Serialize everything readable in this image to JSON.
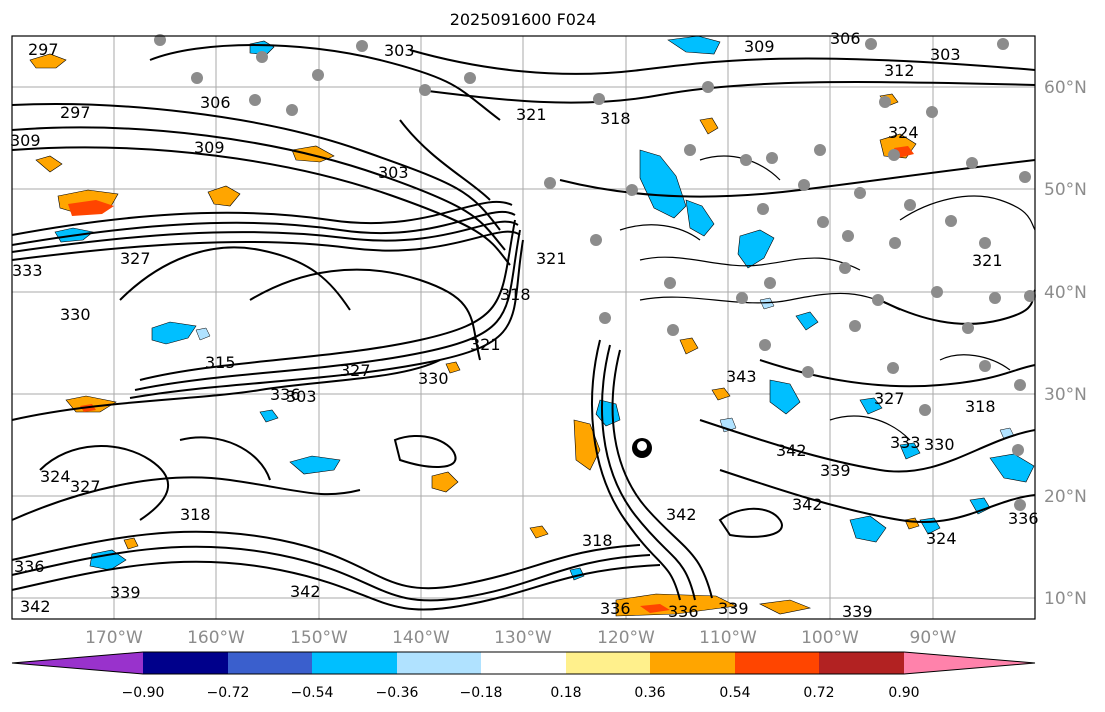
{
  "title": "2025091600 F024",
  "lat_labels": [
    "60°N",
    "50°N",
    "40°N",
    "30°N",
    "20°N",
    "10°N"
  ],
  "lon_labels": [
    "170°W",
    "160°W",
    "150°W",
    "140°W",
    "130°W",
    "120°W",
    "110°W",
    "100°W",
    "90°W"
  ],
  "colorbar": {
    "colors": [
      "#9932cc",
      "#00008b",
      "#3a5fcd",
      "#00bfff",
      "#b0e2ff",
      "#ffffff",
      "#fff08c",
      "#ffa500",
      "#ff4500",
      "#b22222",
      "#ff82ab"
    ],
    "ticks": [
      "−0.90",
      "−0.72",
      "−0.54",
      "−0.36",
      "−0.18",
      "0.18",
      "0.36",
      "0.54",
      "0.72",
      "0.90"
    ]
  },
  "contour_labels": [
    "297",
    "306",
    "309",
    "303",
    "303",
    "306",
    "312",
    "309",
    "297",
    "318",
    "321",
    "309",
    "303",
    "327",
    "333",
    "330",
    "315",
    "327",
    "330",
    "321",
    "336",
    "318",
    "342",
    "343",
    "342",
    "342",
    "339",
    "336",
    "333",
    "330",
    "318",
    "342",
    "336",
    "339",
    "321",
    "324",
    "324",
    "318",
    "321",
    "303",
    "336",
    "339",
    "327",
    "342",
    "318",
    "324",
    "327",
    "336",
    "339"
  ]
}
